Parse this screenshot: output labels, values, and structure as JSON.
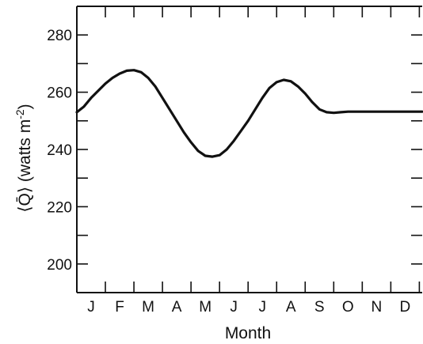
{
  "chart_data": {
    "type": "line",
    "title": "",
    "xlabel": "Month",
    "ylabel": "⟨Q̄⟩ (watts m⁻²)",
    "ylabel_parts": {
      "main": "⟨Q̄⟩ (watts m",
      "sup": "-2",
      "close": ")"
    },
    "categories": [
      "J",
      "F",
      "M",
      "A",
      "M",
      "J",
      "J",
      "A",
      "S",
      "O",
      "N",
      "D"
    ],
    "xlim": [
      0,
      12.1
    ],
    "ylim": [
      190,
      290
    ],
    "yticks": [
      200,
      220,
      240,
      260,
      280
    ],
    "grid": false,
    "legend": "none",
    "series": [
      {
        "x": [
          0.0,
          0.25,
          0.5,
          0.75,
          1.0,
          1.25,
          1.5,
          1.75,
          2.0,
          2.25,
          2.5,
          2.75,
          3.0,
          3.25,
          3.5,
          3.75,
          4.0,
          4.25,
          4.5,
          4.75,
          5.0,
          5.25,
          5.5,
          5.75,
          6.0,
          6.25,
          6.5,
          6.75,
          7.0,
          7.25,
          7.5,
          7.75,
          8.0,
          8.25,
          8.5,
          8.75,
          9.0,
          9.25,
          9.5,
          9.75,
          10.0,
          10.25,
          10.5,
          10.75,
          11.0,
          11.25,
          11.5,
          11.75,
          12.1
        ],
        "values": [
          253,
          255,
          258,
          260.5,
          263,
          265,
          266.5,
          267.5,
          267.7,
          267,
          265,
          262,
          258,
          254,
          250,
          246,
          242.5,
          239.5,
          237.8,
          237.5,
          238,
          240,
          243,
          246.5,
          250,
          254,
          258,
          261.5,
          263.5,
          264.3,
          263.8,
          262,
          259.5,
          256.5,
          254,
          253,
          252.8,
          253,
          253.2,
          253.2,
          253.2,
          253.2,
          253.2,
          253.2,
          253.2,
          253.2,
          253.2,
          253.2,
          253.2
        ]
      }
    ],
    "line_color": "#111111"
  }
}
